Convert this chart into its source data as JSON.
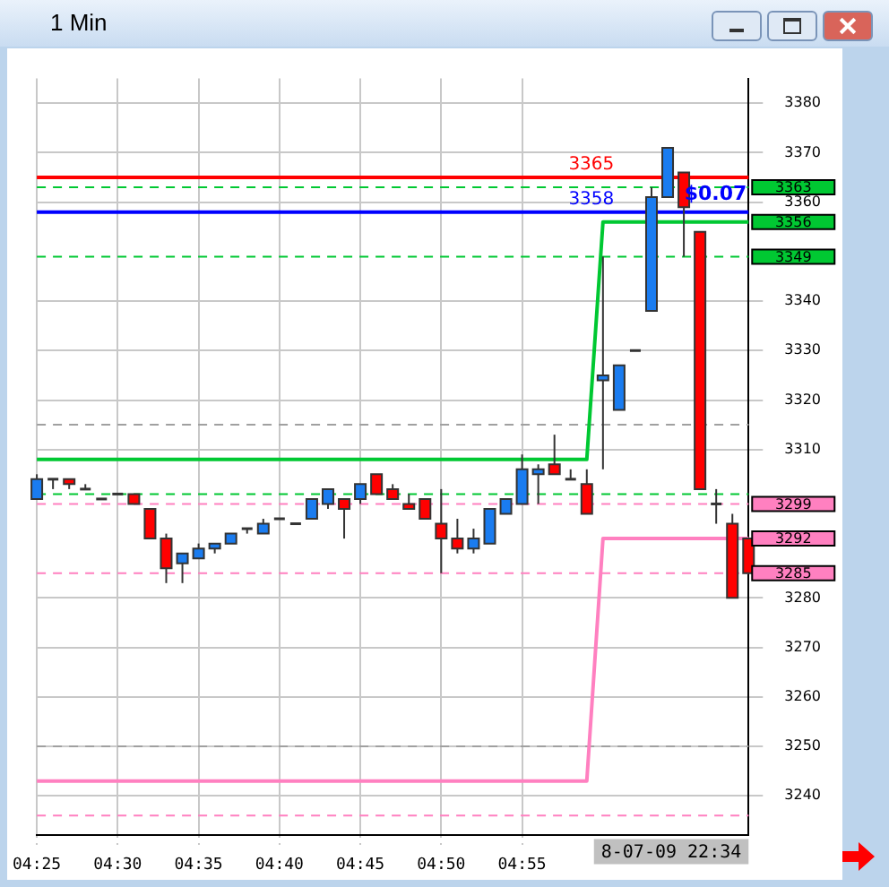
{
  "chart_data": {
    "type": "candlestick",
    "title": "1 Min",
    "categories": [
      "04:25",
      null,
      null,
      null,
      null,
      "04:30",
      null,
      null,
      null,
      null,
      "04:35",
      null,
      null,
      null,
      null,
      "04:40",
      null,
      null,
      null,
      null,
      "04:45",
      null,
      null,
      null,
      null,
      "04:50",
      null,
      null,
      null,
      null,
      "04:55",
      null,
      null,
      null,
      null,
      null,
      null,
      null,
      null,
      null,
      null,
      null,
      null,
      null,
      null
    ],
    "ohlc": [
      [
        3300,
        3305,
        3300,
        3304
      ],
      [
        3304,
        3304,
        3302,
        3304
      ],
      [
        3304,
        3304,
        3302,
        3303
      ],
      [
        3302,
        3303,
        3302,
        3302
      ],
      [
        3300,
        3300,
        3300,
        3300
      ],
      [
        3301,
        3301,
        3301,
        3301
      ],
      [
        3301,
        3301,
        3299,
        3299
      ],
      [
        3298,
        3298,
        3292,
        3292
      ],
      [
        3292,
        3293,
        3283,
        3286
      ],
      [
        3287,
        3289,
        3283,
        3289
      ],
      [
        3288,
        3291,
        3288,
        3290
      ],
      [
        3290,
        3291,
        3289,
        3291
      ],
      [
        3291,
        3293,
        3291,
        3293
      ],
      [
        3294,
        3294,
        3293,
        3294
      ],
      [
        3293,
        3296,
        3293,
        3295
      ],
      [
        3296,
        3296,
        3296,
        3296
      ],
      [
        3295,
        3295,
        3295,
        3295
      ],
      [
        3296,
        3300,
        3296,
        3300
      ],
      [
        3299,
        3302,
        3298,
        3302
      ],
      [
        3300,
        3300,
        3292,
        3298
      ],
      [
        3300,
        3303,
        3299,
        3303
      ],
      [
        3305,
        3305,
        3301,
        3301
      ],
      [
        3302,
        3303,
        3300,
        3300
      ],
      [
        3299,
        3301,
        3298,
        3298
      ],
      [
        3300,
        3300,
        3296,
        3296
      ],
      [
        3295,
        3302,
        3285,
        3292
      ],
      [
        3292,
        3296,
        3289,
        3290
      ],
      [
        3290,
        3294,
        3289,
        3292
      ],
      [
        3291,
        3298,
        3291,
        3298
      ],
      [
        3297,
        3300,
        3297,
        3300
      ],
      [
        3299,
        3309,
        3299,
        3306
      ],
      [
        3305,
        3307,
        3299,
        3306
      ],
      [
        3307,
        3313,
        3305,
        3305
      ],
      [
        3304,
        3306,
        3304,
        3304
      ],
      [
        3303,
        3306,
        3297,
        3297
      ],
      [
        3324,
        3349,
        3306,
        3325
      ],
      [
        3318,
        3327,
        3318,
        3327
      ],
      [
        3330,
        3330,
        3330,
        3330
      ],
      [
        3338,
        3363,
        3338,
        3361
      ],
      [
        3361,
        3371,
        3361,
        3371
      ],
      [
        3366,
        3366,
        3349,
        3359
      ],
      [
        3354,
        3354,
        3302,
        3302
      ],
      [
        3299,
        3302,
        3295,
        3299
      ],
      [
        3295,
        3297,
        3280,
        3280
      ],
      [
        3292,
        3292,
        3285,
        3285
      ]
    ],
    "colors": [
      "#1a7cf0",
      "#333333",
      "#ff0000",
      "#333333",
      "#333333",
      "#333333",
      "#ff0000",
      "#ff0000",
      "#ff0000",
      "#1a7cf0",
      "#1a7cf0",
      "#1a7cf0",
      "#1a7cf0",
      "#333333",
      "#1a7cf0",
      "#333333",
      "#333333",
      "#1a7cf0",
      "#1a7cf0",
      "#ff0000",
      "#1a7cf0",
      "#ff0000",
      "#ff0000",
      "#ff0000",
      "#ff0000",
      "#ff0000",
      "#ff0000",
      "#1a7cf0",
      "#1a7cf0",
      "#1a7cf0",
      "#1a7cf0",
      "#1a7cf0",
      "#ff0000",
      "#333333",
      "#ff0000",
      "#1a7cf0",
      "#1a7cf0",
      "#333333",
      "#1a7cf0",
      "#1a7cf0",
      "#ff0000",
      "#ff0000",
      "#333333",
      "#ff0000",
      "#ff0000"
    ],
    "series": [
      {
        "type": "line",
        "color": "#00c832",
        "values": [
          3308,
          3308,
          3308,
          3308,
          3308,
          3308,
          3308,
          3308,
          3308,
          3308,
          3308,
          3308,
          3308,
          3308,
          3308,
          3308,
          3308,
          3308,
          3308,
          3308,
          3308,
          3308,
          3308,
          3308,
          3308,
          3308,
          3308,
          3308,
          3308,
          3308,
          3308,
          3308,
          3308,
          3308,
          3308,
          3356,
          3356,
          3356,
          3356,
          3356,
          3356,
          3356,
          3356,
          3356,
          3356
        ],
        "value_labels": [
          null,
          null,
          null,
          null,
          null,
          null,
          null,
          null,
          null,
          null,
          null,
          null,
          null,
          null,
          null,
          null,
          null,
          null,
          null,
          null,
          null,
          null,
          null,
          null,
          null,
          null,
          null,
          null,
          null,
          null,
          null,
          null,
          null,
          null,
          null,
          null,
          null,
          null,
          null,
          null,
          null,
          null,
          null,
          null,
          "3356"
        ]
      },
      {
        "type": "line",
        "color": "#ff80c0",
        "values": [
          3243,
          3243,
          3243,
          3243,
          3243,
          3243,
          3243,
          3243,
          3243,
          3243,
          3243,
          3243,
          3243,
          3243,
          3243,
          3243,
          3243,
          3243,
          3243,
          3243,
          3243,
          3243,
          3243,
          3243,
          3243,
          3243,
          3243,
          3243,
          3243,
          3243,
          3243,
          3243,
          3243,
          3243,
          3243,
          3292,
          3292,
          3292,
          3292,
          3292,
          3292,
          3292,
          3292,
          3292,
          3292
        ],
        "value_labels": [
          null,
          null,
          null,
          null,
          null,
          null,
          null,
          null,
          null,
          null,
          null,
          null,
          null,
          null,
          null,
          null,
          null,
          null,
          null,
          null,
          null,
          null,
          null,
          null,
          null,
          null,
          null,
          null,
          null,
          null,
          null,
          null,
          null,
          null,
          null,
          null,
          null,
          null,
          null,
          null,
          null,
          null,
          null,
          null,
          "3292"
        ]
      }
    ],
    "ylim": [
      3232,
      3385
    ],
    "yticks": [
      3240,
      3250,
      3260,
      3270,
      3280,
      3310,
      3320,
      3330,
      3340,
      3360,
      3370,
      3380
    ],
    "grid": true,
    "legend": false,
    "line_style": "solid",
    "ref_lines": [
      {
        "axis": "y",
        "value": 3315,
        "color": "#a0a0a0",
        "line_style": "dashed"
      },
      {
        "axis": "y",
        "value": 3301,
        "color": "#00c832",
        "line_style": "dashed"
      },
      {
        "axis": "y",
        "value": 3250,
        "color": "#a0a0a0",
        "line_style": "dashed"
      },
      {
        "axis": "y",
        "value": 3236,
        "color": "#ff80c0",
        "line_style": "dashed"
      },
      {
        "axis": "y",
        "value": 3363,
        "color": "#00c832",
        "line_style": "dashed",
        "label": "3363"
      },
      {
        "axis": "y",
        "value": 3349,
        "color": "#00c832",
        "line_style": "dashed",
        "label": "3349"
      },
      {
        "axis": "y",
        "value": 3299,
        "color": "#ff80c0",
        "line_style": "dashed",
        "label": "3299"
      },
      {
        "axis": "y",
        "value": 3285,
        "color": "#ff80c0",
        "line_style": "dashed",
        "label": "3285"
      },
      {
        "axis": "y",
        "value": 3365,
        "color": "#ff0000",
        "line_style": "solid",
        "label": "3365"
      },
      {
        "axis": "y",
        "value": 3358,
        "color": "#0000ff",
        "line_style": "solid",
        "label": "3358"
      }
    ],
    "annotations": [
      {
        "text": "$0.07",
        "y": 3361.5
      },
      "8-07-09 22:34"
    ]
  }
}
